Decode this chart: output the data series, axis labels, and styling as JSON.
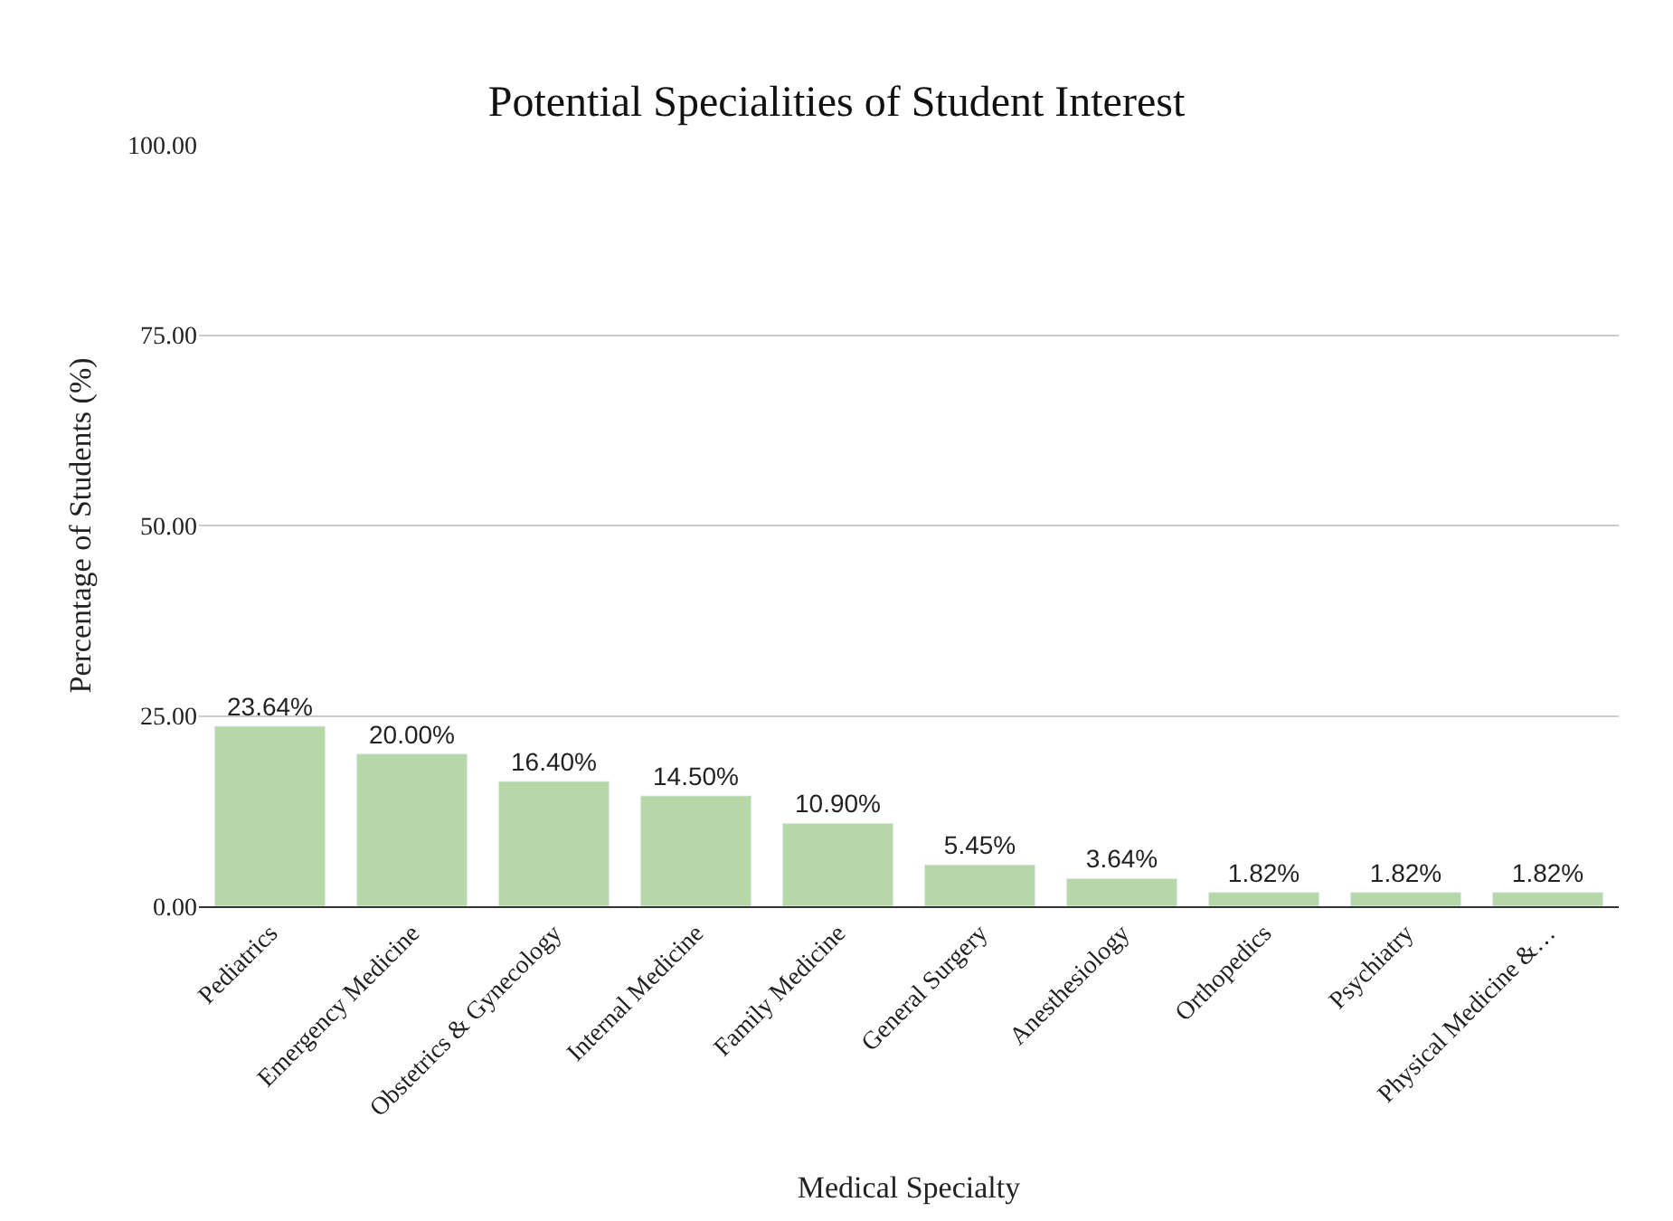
{
  "chart_data": {
    "type": "bar",
    "title": "Potential Specialities of Student Interest",
    "xlabel": "Medical Specialty",
    "ylabel": "Percentage of Students (%)",
    "categories": [
      "Pediatrics",
      "Emergency Medicine",
      "Obstetrics & Gynecology",
      "Internal Medicine",
      "Family Medicine",
      "General Surgery",
      "Anesthesiology",
      "Orthopedics",
      "Psychiatry",
      "Physical Medicine &…"
    ],
    "values": [
      23.64,
      20.0,
      16.4,
      14.5,
      10.9,
      5.45,
      3.64,
      1.82,
      1.82,
      1.82
    ],
    "value_labels": [
      "23.64%",
      "20.00%",
      "16.40%",
      "14.50%",
      "10.90%",
      "5.45%",
      "3.64%",
      "1.82%",
      "1.82%",
      "1.82%"
    ],
    "color": "#b6d7a8",
    "ylim": [
      0,
      100
    ],
    "yticks": [
      {
        "value": 0,
        "label": "0.00"
      },
      {
        "value": 25,
        "label": "25.00"
      },
      {
        "value": 50,
        "label": "50.00"
      },
      {
        "value": 75,
        "label": "75.00"
      },
      {
        "value": 100,
        "label": "100.00"
      }
    ],
    "grid": "y",
    "legend": false
  }
}
